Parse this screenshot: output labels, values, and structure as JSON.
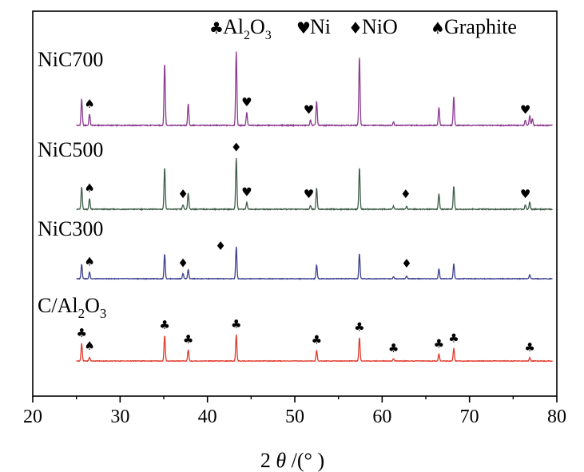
{
  "chart_data": {
    "type": "line",
    "title": "",
    "xlabel_parts": {
      "pre": "2",
      "theta": "θ",
      "post": "/(°  )"
    },
    "xlim": [
      20,
      80
    ],
    "xticks": [
      20,
      30,
      40,
      50,
      60,
      70,
      80
    ],
    "ylabel": "",
    "grid": false,
    "legend": {
      "placement": "top-center",
      "entries": [
        {
          "symbol": "♣",
          "symbol_name": "club-icon",
          "label_main": "Al",
          "sub1": "2",
          "mid": "O",
          "sub2": "3"
        },
        {
          "symbol": "♥",
          "symbol_name": "heart-icon",
          "label_main": "Ni"
        },
        {
          "symbol": "♦",
          "symbol_name": "diamond-icon",
          "label_main": "NiO"
        },
        {
          "symbol": "♠",
          "symbol_name": "spade-icon",
          "label_main": "Graphite"
        }
      ]
    },
    "series": [
      {
        "name": "NiC700",
        "label_parts": {
          "main": "NiC700"
        },
        "color": "#8B3A8F",
        "peaks": [
          {
            "x": 25.6,
            "h": 0.35
          },
          {
            "x": 26.5,
            "h": 0.15
          },
          {
            "x": 35.1,
            "h": 0.82
          },
          {
            "x": 37.8,
            "h": 0.28
          },
          {
            "x": 43.3,
            "h": 0.98
          },
          {
            "x": 44.5,
            "h": 0.17
          },
          {
            "x": 51.8,
            "h": 0.07
          },
          {
            "x": 52.5,
            "h": 0.32
          },
          {
            "x": 57.4,
            "h": 0.9
          },
          {
            "x": 61.3,
            "h": 0.05
          },
          {
            "x": 66.5,
            "h": 0.24
          },
          {
            "x": 68.2,
            "h": 0.38
          },
          {
            "x": 76.4,
            "h": 0.07
          },
          {
            "x": 76.9,
            "h": 0.13
          },
          {
            "x": 77.2,
            "h": 0.09
          }
        ],
        "markers": [
          {
            "x": 26.5,
            "symbol": "♠"
          },
          {
            "x": 44.5,
            "symbol": "♥"
          },
          {
            "x": 51.6,
            "symbol": "♥"
          },
          {
            "x": 76.4,
            "symbol": "♥"
          }
        ]
      },
      {
        "name": "NiC500",
        "label_parts": {
          "main": "NiC500"
        },
        "color": "#3F5E4A",
        "peaks": [
          {
            "x": 25.6,
            "h": 0.29
          },
          {
            "x": 26.5,
            "h": 0.14
          },
          {
            "x": 35.1,
            "h": 0.55
          },
          {
            "x": 37.2,
            "h": 0.06
          },
          {
            "x": 37.8,
            "h": 0.22
          },
          {
            "x": 43.3,
            "h": 0.68
          },
          {
            "x": 44.5,
            "h": 0.09
          },
          {
            "x": 51.8,
            "h": 0.05
          },
          {
            "x": 52.5,
            "h": 0.28
          },
          {
            "x": 57.4,
            "h": 0.55
          },
          {
            "x": 61.3,
            "h": 0.04
          },
          {
            "x": 62.8,
            "h": 0.04
          },
          {
            "x": 66.5,
            "h": 0.21
          },
          {
            "x": 68.2,
            "h": 0.31
          },
          {
            "x": 76.4,
            "h": 0.06
          },
          {
            "x": 76.9,
            "h": 0.1
          }
        ],
        "markers": [
          {
            "x": 26.5,
            "symbol": "♠"
          },
          {
            "x": 37.2,
            "symbol": "♦"
          },
          {
            "x": 43.3,
            "symbol": "♦",
            "above": true
          },
          {
            "x": 44.5,
            "symbol": "♥"
          },
          {
            "x": 51.6,
            "symbol": "♥"
          },
          {
            "x": 62.7,
            "symbol": "♦"
          },
          {
            "x": 76.4,
            "symbol": "♥"
          }
        ]
      },
      {
        "name": "NiC300",
        "label_parts": {
          "main": "NiC300"
        },
        "color": "#3B3F8F",
        "peaks": [
          {
            "x": 25.6,
            "h": 0.28
          },
          {
            "x": 26.5,
            "h": 0.13
          },
          {
            "x": 35.1,
            "h": 0.48
          },
          {
            "x": 37.2,
            "h": 0.1
          },
          {
            "x": 37.8,
            "h": 0.18
          },
          {
            "x": 43.3,
            "h": 0.62
          },
          {
            "x": 52.5,
            "h": 0.27
          },
          {
            "x": 57.4,
            "h": 0.48
          },
          {
            "x": 61.3,
            "h": 0.04
          },
          {
            "x": 62.8,
            "h": 0.05
          },
          {
            "x": 66.5,
            "h": 0.19
          },
          {
            "x": 68.2,
            "h": 0.29
          },
          {
            "x": 76.9,
            "h": 0.08
          }
        ],
        "markers": [
          {
            "x": 26.5,
            "symbol": "♠"
          },
          {
            "x": 37.2,
            "symbol": "♦"
          },
          {
            "x": 41.5,
            "symbol": "♦",
            "high": true
          },
          {
            "x": 62.8,
            "symbol": "♦"
          }
        ]
      },
      {
        "name": "C/Al2O3",
        "label_parts": {
          "main": "C/Al",
          "sub1": "2",
          "mid": "O",
          "sub2": "3"
        },
        "color": "#E0392B",
        "peaks": [
          {
            "x": 25.6,
            "h": 0.38
          },
          {
            "x": 26.5,
            "h": 0.08
          },
          {
            "x": 35.1,
            "h": 0.55
          },
          {
            "x": 37.8,
            "h": 0.24
          },
          {
            "x": 43.3,
            "h": 0.57
          },
          {
            "x": 52.5,
            "h": 0.23
          },
          {
            "x": 57.4,
            "h": 0.51
          },
          {
            "x": 61.3,
            "h": 0.05
          },
          {
            "x": 66.5,
            "h": 0.15
          },
          {
            "x": 68.2,
            "h": 0.27
          },
          {
            "x": 76.9,
            "h": 0.07
          }
        ],
        "markers": [
          {
            "x": 25.6,
            "symbol": "♣"
          },
          {
            "x": 26.5,
            "symbol": "♠"
          },
          {
            "x": 35.1,
            "symbol": "♣"
          },
          {
            "x": 37.8,
            "symbol": "♣"
          },
          {
            "x": 43.3,
            "symbol": "♣"
          },
          {
            "x": 52.5,
            "symbol": "♣"
          },
          {
            "x": 57.4,
            "symbol": "♣"
          },
          {
            "x": 61.3,
            "symbol": "♣"
          },
          {
            "x": 66.5,
            "symbol": "♣"
          },
          {
            "x": 68.2,
            "symbol": "♣"
          },
          {
            "x": 76.9,
            "symbol": "♣"
          }
        ]
      }
    ]
  }
}
